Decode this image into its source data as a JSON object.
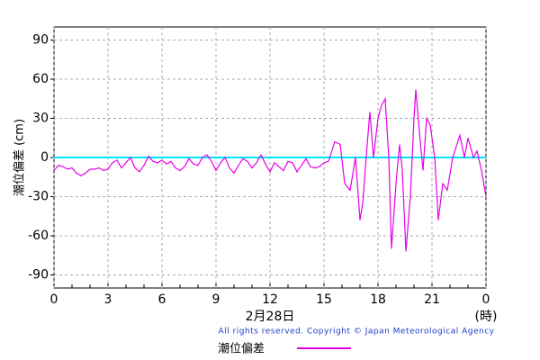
{
  "chart_data": {
    "type": "line",
    "ylabel": "潮位偏差 (cm)",
    "xlabel": "2月28日",
    "xunit": "(時)",
    "copyright": "All rights reserved. Copyright © Japan Meteorological Agency",
    "xlim": [
      0,
      24
    ],
    "ylim": [
      -100,
      100
    ],
    "xticks": [
      0,
      3,
      6,
      9,
      12,
      15,
      18,
      21,
      {
        "value": 24,
        "label": "0"
      }
    ],
    "xticks_minor": [
      1,
      2,
      4,
      5,
      7,
      8,
      10,
      11,
      13,
      14,
      16,
      17,
      19,
      20,
      22,
      23
    ],
    "yticks": [
      90,
      60,
      30,
      0,
      -30,
      -60,
      -90
    ],
    "grid": true,
    "reference_line": {
      "value": 0,
      "color": "#00e5ff"
    },
    "x": [
      0,
      0.25,
      0.5,
      0.75,
      1,
      1.25,
      1.5,
      1.75,
      2,
      2.25,
      2.5,
      2.75,
      3,
      3.25,
      3.5,
      3.75,
      4,
      4.25,
      4.5,
      4.75,
      5,
      5.25,
      5.5,
      5.75,
      6,
      6.25,
      6.5,
      6.75,
      7,
      7.25,
      7.5,
      7.75,
      8,
      8.25,
      8.5,
      8.75,
      9,
      9.25,
      9.5,
      9.75,
      10,
      10.25,
      10.5,
      10.75,
      11,
      11.25,
      11.5,
      11.75,
      12,
      12.25,
      12.5,
      12.75,
      13,
      13.25,
      13.5,
      13.75,
      14,
      14.25,
      14.5,
      14.75,
      15,
      15.25,
      15.6,
      15.9,
      16.15,
      16.45,
      16.75,
      17,
      17.15,
      17.4,
      17.55,
      17.75,
      18,
      18.2,
      18.4,
      18.6,
      18.75,
      19,
      19.2,
      19.35,
      19.55,
      19.8,
      20,
      20.1,
      20.3,
      20.5,
      20.7,
      20.9,
      21.15,
      21.35,
      21.6,
      21.85,
      22.15,
      22.55,
      22.8,
      23,
      23.3,
      23.5,
      23.75,
      24
    ],
    "series": [
      {
        "name": "潮位偏差",
        "color": "#e600e6",
        "values": [
          -10,
          -6,
          -7,
          -9,
          -8,
          -12,
          -14,
          -12,
          -9,
          -9,
          -8,
          -10,
          -9,
          -4,
          -2,
          -8,
          -4,
          0,
          -8,
          -11,
          -6,
          1,
          -3,
          -4,
          -2,
          -5,
          -3,
          -8,
          -10,
          -7,
          -1,
          -5,
          -6,
          0,
          2,
          -3,
          -10,
          -4,
          0,
          -8,
          -12,
          -6,
          -1,
          -3,
          -8,
          -4,
          2,
          -5,
          -11,
          -4,
          -7,
          -10,
          -3,
          -4,
          -11,
          -6,
          -1,
          -7,
          -8,
          -7,
          -4,
          -3,
          12,
          10,
          -20,
          -25,
          0,
          -48,
          -35,
          10,
          35,
          0,
          30,
          40,
          45,
          0,
          -70,
          -20,
          10,
          -10,
          -72,
          -30,
          30,
          52,
          20,
          -10,
          30,
          25,
          0,
          -48,
          -20,
          -25,
          0,
          17,
          0,
          15,
          0,
          5,
          -10,
          -30
        ]
      }
    ]
  }
}
